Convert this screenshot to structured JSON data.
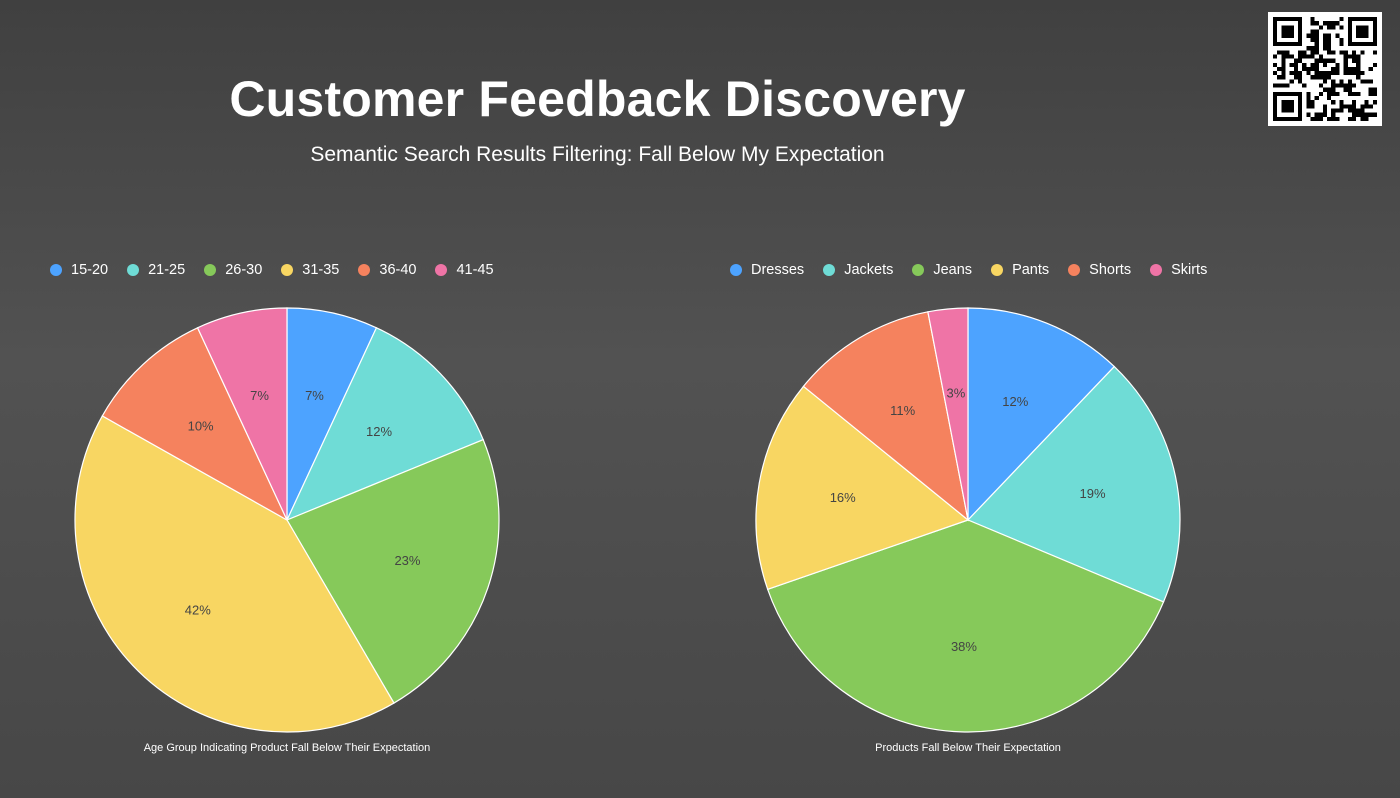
{
  "slide": {
    "title": "Customer Feedback Discovery",
    "subtitle": "Semantic Search Results Filtering: Fall Below My Expectation"
  },
  "qr_code": {
    "icon": "qr-code-icon"
  },
  "colors": {
    "blue": "#4da3ff",
    "teal": "#6fdcd6",
    "green": "#86c95a",
    "yellow": "#f8d662",
    "orange": "#f5825e",
    "pink": "#ef74a6"
  },
  "chart_data": [
    {
      "type": "pie",
      "title": "Age Group Indicating Product Fall Below Their Expectation",
      "categories": [
        "15-20",
        "21-25",
        "26-30",
        "31-35",
        "36-40",
        "41-45"
      ],
      "values": [
        7,
        12,
        23,
        42,
        10,
        7
      ],
      "value_labels": [
        "7%",
        "12%",
        "23%",
        "42%",
        "10%",
        "7%"
      ],
      "colors": [
        "#4da3ff",
        "#6fdcd6",
        "#86c95a",
        "#f8d662",
        "#f5825e",
        "#ef74a6"
      ],
      "legend": "top-left",
      "start": "top",
      "direction": "clockwise"
    },
    {
      "type": "pie",
      "title": "Products Fall Below Their Expectation",
      "categories": [
        "Dresses",
        "Jackets",
        "Jeans",
        "Pants",
        "Shorts",
        "Skirts"
      ],
      "values": [
        12,
        19,
        38,
        16,
        11,
        3
      ],
      "value_labels": [
        "12%",
        "19%",
        "38%",
        "16%",
        "11%",
        "3%"
      ],
      "colors": [
        "#4da3ff",
        "#6fdcd6",
        "#86c95a",
        "#f8d662",
        "#f5825e",
        "#ef74a6"
      ],
      "legend": "top-left",
      "start": "top",
      "direction": "clockwise"
    }
  ]
}
